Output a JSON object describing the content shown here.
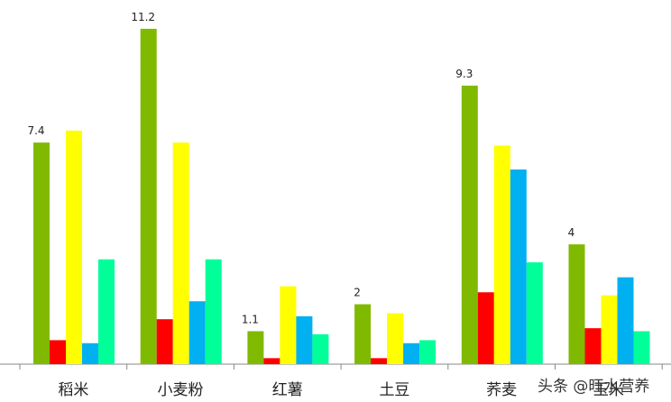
{
  "chart_data": {
    "type": "bar",
    "title": "",
    "xlabel": "",
    "ylabel": "",
    "ylim": [
      0,
      11.8
    ],
    "grid": false,
    "legend": "none",
    "categories": [
      "稻米",
      "小麦粉",
      "红薯",
      "土豆",
      "荞麦",
      "玉米"
    ],
    "series": [
      {
        "color": "#7fba00",
        "values": [
          7.4,
          11.2,
          1.1,
          2,
          9.3,
          4
        ],
        "show_labels": true
      },
      {
        "color": "#ff0000",
        "values": [
          0.8,
          1.5,
          0.2,
          0.2,
          2.4,
          1.2
        ],
        "show_labels": false
      },
      {
        "color": "#ffff00",
        "values": [
          7.8,
          7.4,
          2.6,
          1.7,
          7.3,
          2.3
        ],
        "show_labels": false
      },
      {
        "color": "#00b0f0",
        "values": [
          0.7,
          2.1,
          1.6,
          0.7,
          6.5,
          2.9
        ],
        "show_labels": false
      },
      {
        "color": "#00ff99",
        "values": [
          3.5,
          3.5,
          1.0,
          0.8,
          3.4,
          1.1
        ],
        "show_labels": false
      }
    ],
    "data_labels": [
      "7.4",
      "11.2",
      "1.1",
      "2",
      "9.3",
      "4"
    ]
  },
  "watermark": {
    "text": "头条 @旺水营养"
  }
}
